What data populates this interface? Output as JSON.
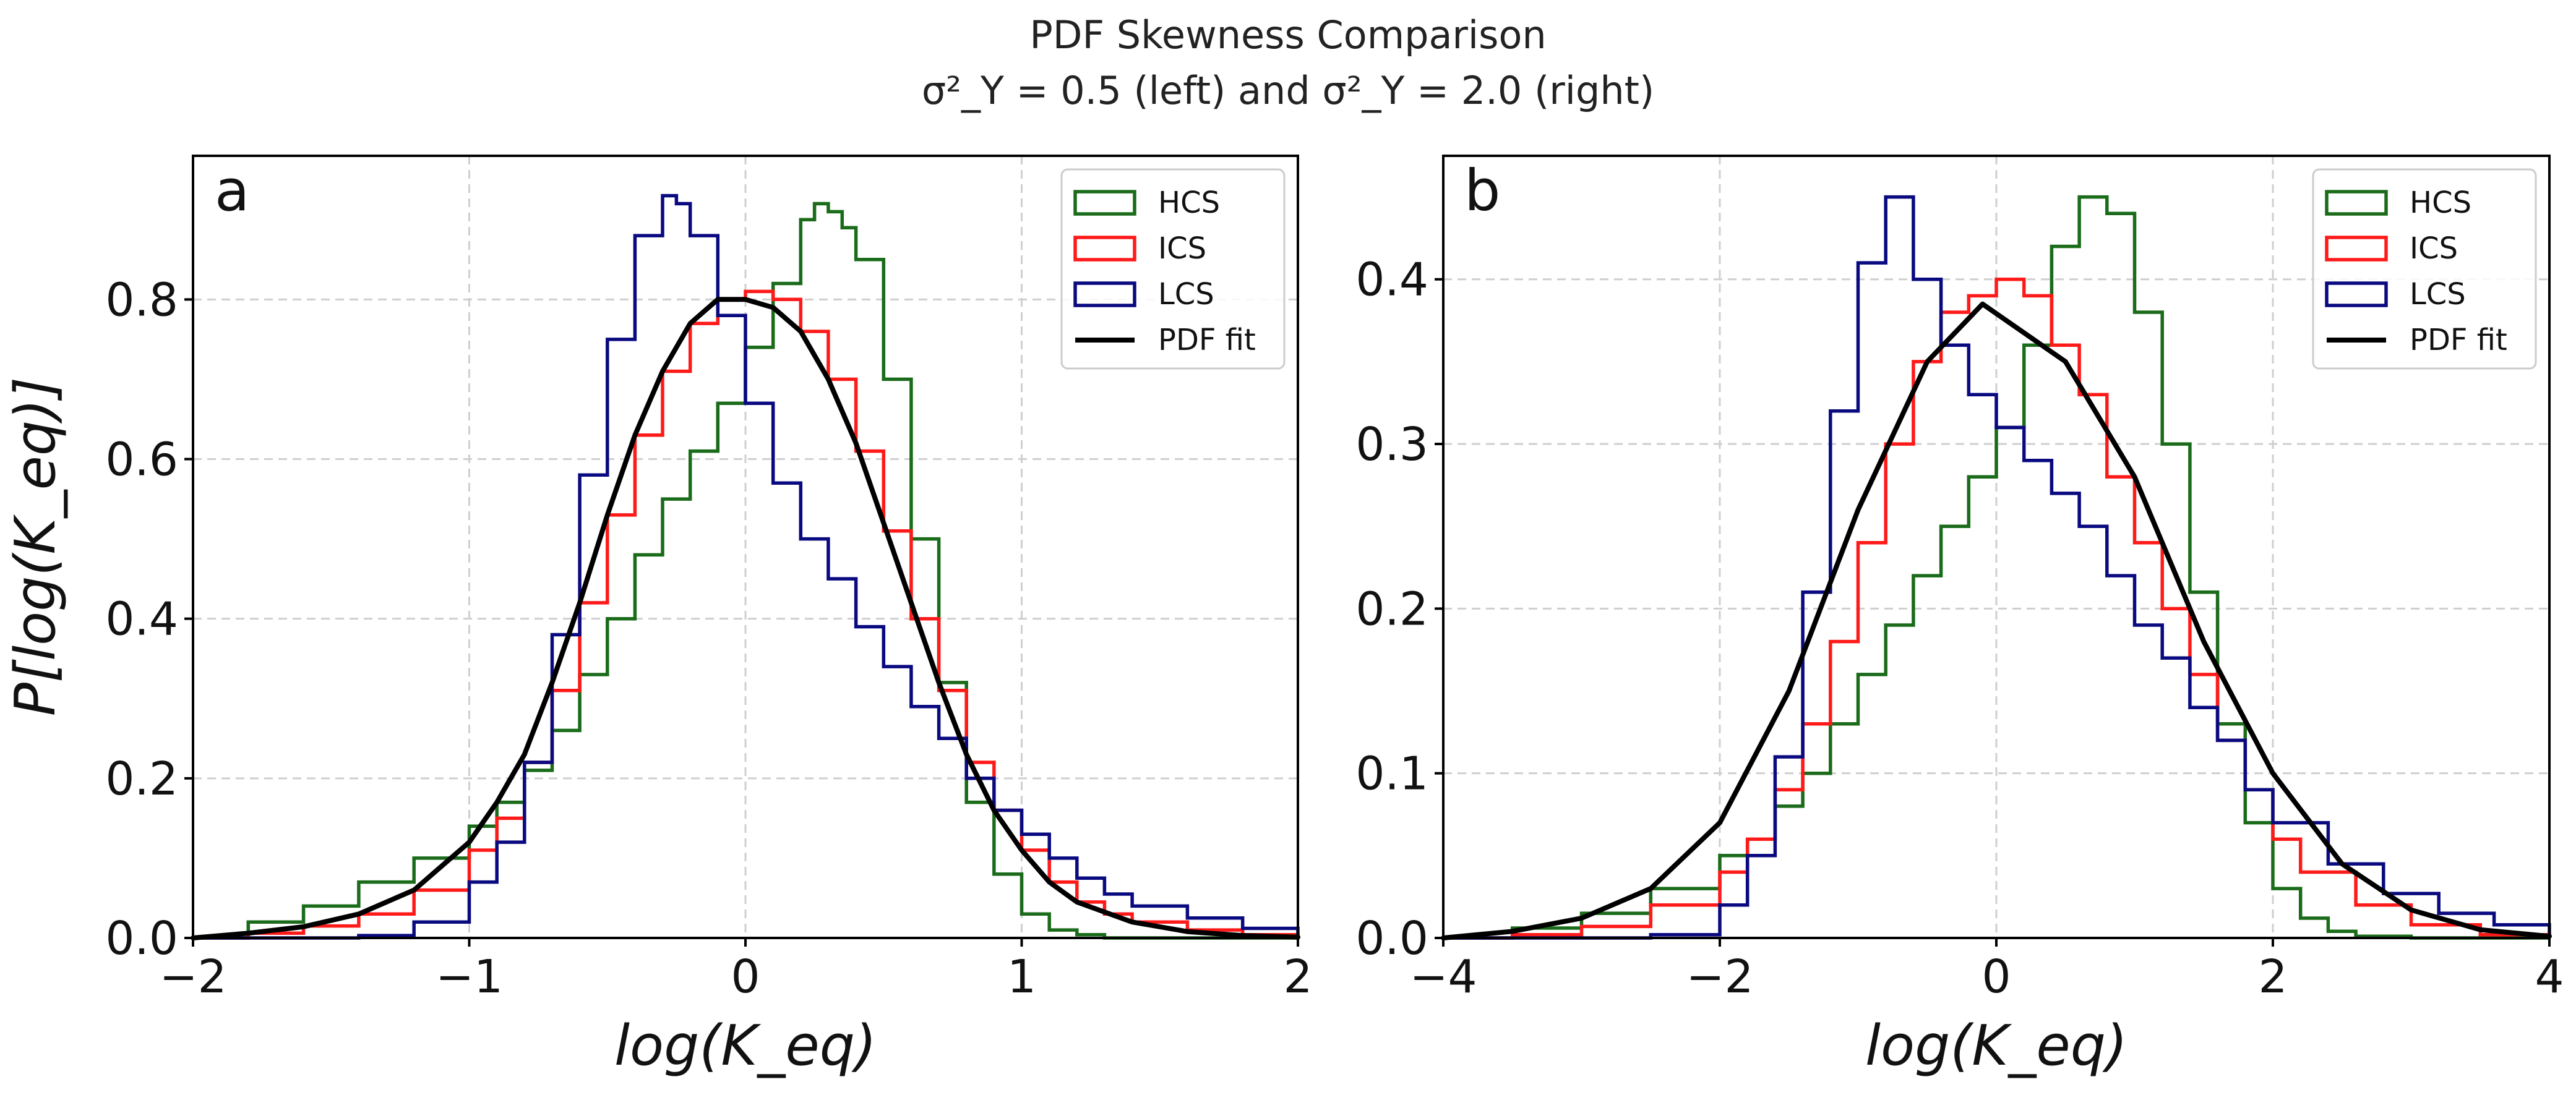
{
  "title": {
    "line1": "PDF Skewness Comparison",
    "line2": "σ²_Y = 0.5 (left) and σ²_Y = 2.0 (right)"
  },
  "chart_data": [
    {
      "type": "line",
      "panel_label": "a",
      "xlabel": "log(K_eq)",
      "ylabel": "P[log(K_eq)]",
      "xlim": [
        -2,
        2
      ],
      "ylim": [
        0,
        0.98
      ],
      "xticks": [
        -2,
        -1,
        0,
        1,
        2
      ],
      "xtick_labels": [
        "−2",
        "−1",
        "0",
        "1",
        "2"
      ],
      "yticks": [
        0.0,
        0.2,
        0.4,
        0.6,
        0.8
      ],
      "ytick_labels": [
        "0.0",
        "0.2",
        "0.4",
        "0.6",
        "0.8"
      ],
      "grid": true,
      "legend_position": "top-right",
      "series": [
        {
          "name": "HCS",
          "style": "step",
          "color": "#1a6b1a",
          "x": [
            -2.0,
            -1.8,
            -1.6,
            -1.4,
            -1.2,
            -1.0,
            -0.9,
            -0.8,
            -0.7,
            -0.6,
            -0.5,
            -0.4,
            -0.3,
            -0.2,
            -0.1,
            0.0,
            0.1,
            0.2,
            0.25,
            0.3,
            0.35,
            0.4,
            0.5,
            0.6,
            0.7,
            0.8,
            0.9,
            1.0,
            1.1,
            1.2,
            1.3,
            2.0
          ],
          "y": [
            0.0,
            0.02,
            0.04,
            0.07,
            0.1,
            0.14,
            0.17,
            0.21,
            0.26,
            0.33,
            0.4,
            0.48,
            0.55,
            0.61,
            0.67,
            0.74,
            0.82,
            0.9,
            0.92,
            0.91,
            0.89,
            0.85,
            0.7,
            0.5,
            0.32,
            0.17,
            0.08,
            0.03,
            0.01,
            0.004,
            0.0,
            0.0
          ]
        },
        {
          "name": "ICS",
          "style": "step",
          "color": "#ff1a1a",
          "x": [
            -2.0,
            -1.8,
            -1.6,
            -1.4,
            -1.2,
            -1.0,
            -0.9,
            -0.8,
            -0.7,
            -0.6,
            -0.5,
            -0.4,
            -0.3,
            -0.2,
            -0.1,
            0.0,
            0.1,
            0.2,
            0.3,
            0.4,
            0.5,
            0.6,
            0.7,
            0.8,
            0.9,
            1.0,
            1.1,
            1.2,
            1.3,
            1.4,
            1.6,
            1.8,
            2.0
          ],
          "y": [
            0.0,
            0.006,
            0.015,
            0.03,
            0.06,
            0.11,
            0.15,
            0.22,
            0.31,
            0.42,
            0.53,
            0.63,
            0.71,
            0.77,
            0.8,
            0.81,
            0.8,
            0.76,
            0.7,
            0.61,
            0.51,
            0.4,
            0.31,
            0.22,
            0.16,
            0.11,
            0.07,
            0.045,
            0.03,
            0.02,
            0.01,
            0.004,
            0.0
          ]
        },
        {
          "name": "LCS",
          "style": "step",
          "color": "#0a0a80",
          "x": [
            -2.0,
            -1.4,
            -1.2,
            -1.0,
            -0.9,
            -0.8,
            -0.7,
            -0.6,
            -0.5,
            -0.4,
            -0.3,
            -0.25,
            -0.2,
            -0.1,
            0.0,
            0.1,
            0.2,
            0.3,
            0.4,
            0.5,
            0.6,
            0.7,
            0.8,
            0.9,
            1.0,
            1.1,
            1.2,
            1.3,
            1.4,
            1.6,
            1.8,
            2.0
          ],
          "y": [
            0.0,
            0.003,
            0.02,
            0.07,
            0.12,
            0.22,
            0.38,
            0.58,
            0.75,
            0.88,
            0.93,
            0.92,
            0.88,
            0.78,
            0.67,
            0.57,
            0.5,
            0.45,
            0.39,
            0.34,
            0.29,
            0.25,
            0.2,
            0.16,
            0.13,
            0.1,
            0.075,
            0.055,
            0.04,
            0.025,
            0.012,
            0.0
          ]
        },
        {
          "name": "PDF fit",
          "style": "line",
          "color": "#000000",
          "x": [
            -2.0,
            -1.8,
            -1.6,
            -1.4,
            -1.2,
            -1.0,
            -0.9,
            -0.8,
            -0.7,
            -0.6,
            -0.5,
            -0.4,
            -0.3,
            -0.2,
            -0.1,
            0.0,
            0.1,
            0.2,
            0.3,
            0.4,
            0.5,
            0.6,
            0.7,
            0.8,
            0.9,
            1.0,
            1.1,
            1.2,
            1.4,
            1.6,
            1.8,
            2.0
          ],
          "y": [
            0.0,
            0.006,
            0.014,
            0.03,
            0.06,
            0.12,
            0.17,
            0.23,
            0.32,
            0.42,
            0.53,
            0.63,
            0.71,
            0.77,
            0.8,
            0.8,
            0.79,
            0.76,
            0.7,
            0.62,
            0.52,
            0.42,
            0.32,
            0.23,
            0.16,
            0.11,
            0.07,
            0.045,
            0.02,
            0.008,
            0.003,
            0.001
          ]
        }
      ]
    },
    {
      "type": "line",
      "panel_label": "b",
      "xlabel": "log(K_eq)",
      "ylabel": "",
      "xlim": [
        -4,
        4
      ],
      "ylim": [
        0,
        0.475
      ],
      "xticks": [
        -4,
        -2,
        0,
        2,
        4
      ],
      "xtick_labels": [
        "−4",
        "−2",
        "0",
        "2",
        "4"
      ],
      "yticks": [
        0.0,
        0.1,
        0.2,
        0.3,
        0.4
      ],
      "ytick_labels": [
        "0.0",
        "0.1",
        "0.2",
        "0.3",
        "0.4"
      ],
      "grid": true,
      "legend_position": "top-right",
      "series": [
        {
          "name": "HCS",
          "style": "step",
          "color": "#1a6b1a",
          "x": [
            -4.0,
            -3.5,
            -3.0,
            -2.5,
            -2.0,
            -1.8,
            -1.6,
            -1.4,
            -1.2,
            -1.0,
            -0.8,
            -0.6,
            -0.4,
            -0.2,
            0.0,
            0.2,
            0.4,
            0.6,
            0.7,
            0.8,
            1.0,
            1.2,
            1.4,
            1.6,
            1.8,
            2.0,
            2.2,
            2.4,
            2.6,
            3.0,
            4.0
          ],
          "y": [
            0.0,
            0.006,
            0.015,
            0.03,
            0.05,
            0.06,
            0.08,
            0.1,
            0.13,
            0.16,
            0.19,
            0.22,
            0.25,
            0.28,
            0.31,
            0.36,
            0.42,
            0.45,
            0.45,
            0.44,
            0.38,
            0.3,
            0.21,
            0.13,
            0.07,
            0.03,
            0.012,
            0.004,
            0.001,
            0.0,
            0.0
          ]
        },
        {
          "name": "ICS",
          "style": "step",
          "color": "#ff1a1a",
          "x": [
            -4.0,
            -3.5,
            -3.0,
            -2.5,
            -2.0,
            -1.8,
            -1.6,
            -1.4,
            -1.2,
            -1.0,
            -0.8,
            -0.6,
            -0.4,
            -0.2,
            0.0,
            0.2,
            0.4,
            0.6,
            0.8,
            1.0,
            1.2,
            1.4,
            1.6,
            1.8,
            2.0,
            2.2,
            2.6,
            3.0,
            3.5,
            4.0
          ],
          "y": [
            0.0,
            0.002,
            0.007,
            0.02,
            0.04,
            0.06,
            0.09,
            0.13,
            0.18,
            0.24,
            0.3,
            0.35,
            0.38,
            0.39,
            0.4,
            0.39,
            0.36,
            0.33,
            0.28,
            0.24,
            0.2,
            0.16,
            0.12,
            0.09,
            0.06,
            0.04,
            0.02,
            0.008,
            0.002,
            0.0
          ]
        },
        {
          "name": "LCS",
          "style": "step",
          "color": "#0a0a80",
          "x": [
            -4.0,
            -2.5,
            -2.0,
            -1.8,
            -1.6,
            -1.4,
            -1.2,
            -1.0,
            -0.8,
            -0.6,
            -0.4,
            -0.2,
            0.0,
            0.2,
            0.4,
            0.6,
            0.8,
            1.0,
            1.2,
            1.4,
            1.6,
            1.8,
            2.0,
            2.4,
            2.8,
            3.2,
            3.6,
            4.0
          ],
          "y": [
            0.0,
            0.002,
            0.02,
            0.05,
            0.11,
            0.21,
            0.32,
            0.41,
            0.45,
            0.4,
            0.36,
            0.33,
            0.31,
            0.29,
            0.27,
            0.25,
            0.22,
            0.19,
            0.17,
            0.14,
            0.12,
            0.09,
            0.07,
            0.045,
            0.027,
            0.015,
            0.008,
            0.0
          ]
        },
        {
          "name": "PDF fit",
          "style": "line",
          "color": "#000000",
          "x": [
            -4.0,
            -3.5,
            -3.0,
            -2.5,
            -2.0,
            -1.5,
            -1.0,
            -0.5,
            -0.1,
            0.5,
            1.0,
            1.5,
            2.0,
            2.5,
            3.0,
            3.5,
            4.0
          ],
          "y": [
            0.0,
            0.004,
            0.012,
            0.03,
            0.07,
            0.15,
            0.26,
            0.35,
            0.385,
            0.35,
            0.28,
            0.18,
            0.1,
            0.045,
            0.017,
            0.005,
            0.001
          ]
        }
      ]
    }
  ]
}
